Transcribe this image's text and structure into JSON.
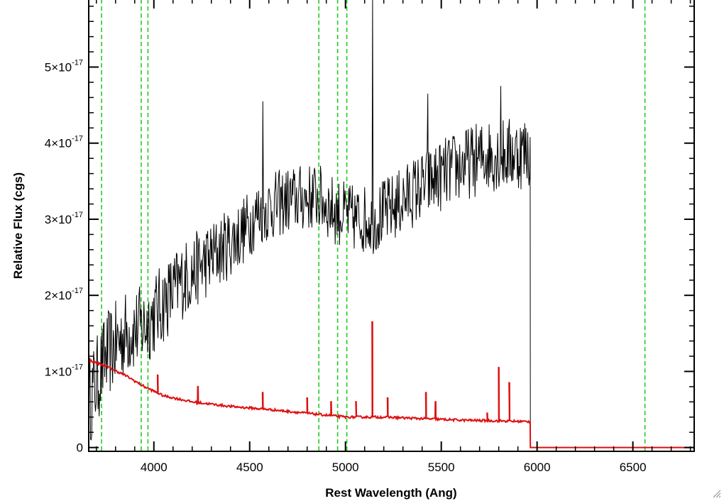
{
  "chart_data": {
    "type": "line",
    "title": "",
    "xlabel": "Rest Wavelength (Ang)",
    "ylabel": "Relative Flux (cgs)",
    "xlim": [
      3660,
      6820
    ],
    "ylim": [
      -5e-19,
      5.9e-17
    ],
    "x_ticks": [
      {
        "value": 4000,
        "label": "4000"
      },
      {
        "value": 4500,
        "label": "4500"
      },
      {
        "value": 5000,
        "label": "5000"
      },
      {
        "value": 5500,
        "label": "5500"
      },
      {
        "value": 6000,
        "label": "6000"
      },
      {
        "value": 6500,
        "label": "6500"
      }
    ],
    "y_ticks": [
      {
        "value": 0,
        "mantissa": "0",
        "exponent": ""
      },
      {
        "value": 1e-17,
        "mantissa": "1×10",
        "exponent": "-17"
      },
      {
        "value": 2e-17,
        "mantissa": "2×10",
        "exponent": "-17"
      },
      {
        "value": 3e-17,
        "mantissa": "3×10",
        "exponent": "-17"
      },
      {
        "value": 4e-17,
        "mantissa": "4×10",
        "exponent": "-17"
      },
      {
        "value": 5e-17,
        "mantissa": "5×10",
        "exponent": "-17"
      }
    ],
    "vertical_lines_x": [
      3727,
      3934,
      3969,
      4861,
      4959,
      5007,
      6563
    ],
    "series": [
      {
        "color": "#000000",
        "style": "solid",
        "envelope": {
          "x": [
            3660,
            3750,
            3850,
            3950,
            4050,
            4150,
            4300,
            4450,
            4550,
            4700,
            4850,
            4950,
            5050,
            5150,
            5250,
            5350,
            5450,
            5550,
            5650,
            5750,
            5850,
            5960
          ],
          "y": [
            6e-18,
            1.2e-17,
            1.5e-17,
            1.6e-17,
            1.9e-17,
            2.2e-17,
            2.5e-17,
            2.8e-17,
            3.1e-17,
            3.25e-17,
            3.3e-17,
            3.1e-17,
            3e-17,
            3e-17,
            3.15e-17,
            3.35e-17,
            3.5e-17,
            3.65e-17,
            3.75e-17,
            3.85e-17,
            3.85e-17,
            3.9e-17
          ]
        },
        "noise_amplitude": [
          {
            "x": 3660,
            "a": 6e-18
          },
          {
            "x": 4000,
            "a": 5.5e-18
          },
          {
            "x": 4500,
            "a": 4.5e-18
          },
          {
            "x": 5000,
            "a": 4.5e-18
          },
          {
            "x": 5960,
            "a": 5e-18
          }
        ],
        "spikes": [
          {
            "x": 4568,
            "y": 4.55e-17
          },
          {
            "x": 5140,
            "y": 5.9e-17
          },
          {
            "x": 5430,
            "y": 4.65e-17
          },
          {
            "x": 5810,
            "y": 4.75e-17
          }
        ],
        "end_x": 5965,
        "drop_to": 0
      },
      {
        "color": "#dd1111",
        "style": "solid",
        "continuum": {
          "x": [
            3660,
            3750,
            3850,
            3950,
            4050,
            4200,
            4400,
            4600,
            4800,
            5000,
            5200,
            5400,
            5600,
            5800,
            5960
          ],
          "y": [
            1.15e-17,
            1.07e-17,
            9.5e-18,
            8e-18,
            6.8e-18,
            6e-18,
            5.4e-18,
            5e-18,
            4.5e-18,
            4e-18,
            4e-18,
            3.8e-18,
            3.6e-18,
            3.5e-18,
            3.4e-18
          ]
        },
        "emission_lines": [
          {
            "x": 4020,
            "y": 9.5e-18
          },
          {
            "x": 4230,
            "y": 8e-18
          },
          {
            "x": 4568,
            "y": 7.2e-18
          },
          {
            "x": 4800,
            "y": 6.5e-18
          },
          {
            "x": 4925,
            "y": 6e-18
          },
          {
            "x": 5055,
            "y": 6e-18
          },
          {
            "x": 5140,
            "y": 1.65e-17
          },
          {
            "x": 5220,
            "y": 6.5e-18
          },
          {
            "x": 5420,
            "y": 7.2e-18
          },
          {
            "x": 5470,
            "y": 6e-18
          },
          {
            "x": 5740,
            "y": 4.5e-18
          },
          {
            "x": 5800,
            "y": 1.05e-17
          },
          {
            "x": 5855,
            "y": 8.5e-18
          }
        ],
        "tail": {
          "from_x": 5965,
          "to_x": 6820,
          "y": 0
        }
      }
    ]
  }
}
